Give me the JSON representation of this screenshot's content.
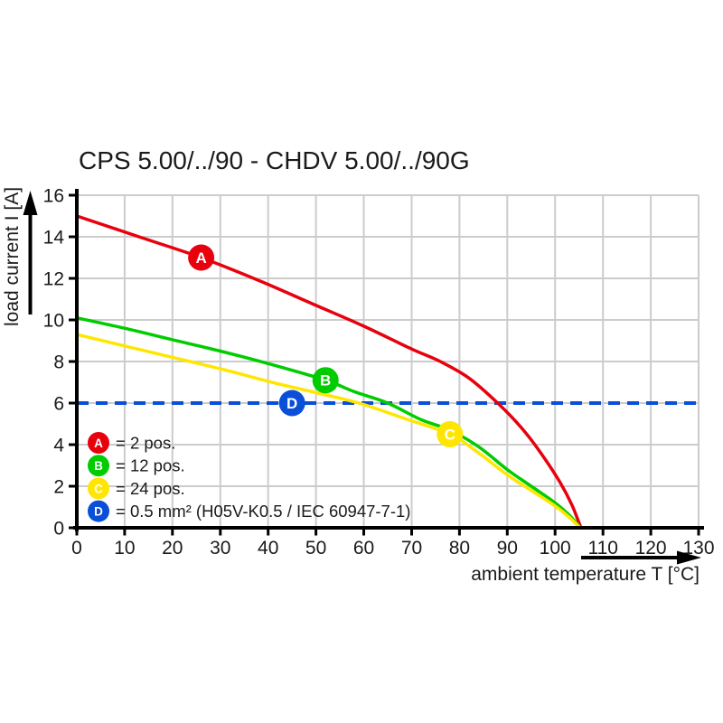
{
  "chart_data": {
    "type": "line",
    "title": "CPS 5.00/../90 - CHDV 5.00/../90G",
    "xlabel": "ambient temperature T [°C]",
    "ylabel": "load current I [A]",
    "xlim": [
      0,
      130
    ],
    "ylim": [
      0,
      16
    ],
    "x_ticks": [
      0,
      10,
      20,
      30,
      40,
      50,
      60,
      70,
      80,
      90,
      100,
      110,
      120,
      130
    ],
    "y_ticks": [
      0,
      2,
      4,
      6,
      8,
      10,
      12,
      14,
      16
    ],
    "grid": true,
    "series": [
      {
        "id": "A",
        "name": "2 pos.",
        "color": "#e8000d",
        "style": "solid",
        "marker": {
          "label": "A",
          "x": 26,
          "y": 13
        },
        "points": [
          [
            0,
            15
          ],
          [
            13,
            14
          ],
          [
            26,
            13
          ],
          [
            38,
            11.9
          ],
          [
            50,
            10.7
          ],
          [
            60,
            9.7
          ],
          [
            70,
            8.6
          ],
          [
            76,
            8.0
          ],
          [
            82,
            7.2
          ],
          [
            88,
            6.0
          ],
          [
            93,
            4.8
          ],
          [
            97,
            3.6
          ],
          [
            101,
            2.2
          ],
          [
            103.5,
            1.1
          ],
          [
            105.4,
            0
          ]
        ]
      },
      {
        "id": "B",
        "name": "12 pos.",
        "color": "#00cc00",
        "style": "solid",
        "marker": {
          "label": "B",
          "x": 52,
          "y": 7.1
        },
        "points": [
          [
            0,
            10.1
          ],
          [
            10,
            9.6
          ],
          [
            20,
            9.05
          ],
          [
            30,
            8.5
          ],
          [
            40,
            7.9
          ],
          [
            52,
            7.1
          ],
          [
            58,
            6.55
          ],
          [
            65,
            6.0
          ],
          [
            72,
            5.2
          ],
          [
            78,
            4.7
          ],
          [
            84,
            3.9
          ],
          [
            90,
            2.8
          ],
          [
            95,
            2.0
          ],
          [
            100,
            1.2
          ],
          [
            103,
            0.6
          ],
          [
            105.3,
            0
          ]
        ]
      },
      {
        "id": "C",
        "name": "24 pos.",
        "color": "#ffe600",
        "style": "solid",
        "marker": {
          "label": "C",
          "x": 78,
          "y": 4.5
        },
        "points": [
          [
            0,
            9.3
          ],
          [
            10,
            8.75
          ],
          [
            20,
            8.2
          ],
          [
            30,
            7.65
          ],
          [
            40,
            7.05
          ],
          [
            50,
            6.5
          ],
          [
            59,
            6.0
          ],
          [
            68,
            5.3
          ],
          [
            78,
            4.5
          ],
          [
            84,
            3.6
          ],
          [
            90,
            2.55
          ],
          [
            95,
            1.8
          ],
          [
            100,
            1.05
          ],
          [
            103,
            0.5
          ],
          [
            105.2,
            0
          ]
        ]
      },
      {
        "id": "D",
        "name": "0.5 mm² (H05V-K0.5 / IEC 60947-7-1)",
        "color": "#0a4fd8",
        "style": "dashed",
        "marker": {
          "label": "D",
          "x": 45,
          "y": 6
        },
        "points": [
          [
            0,
            6
          ],
          [
            130,
            6
          ]
        ]
      }
    ],
    "legend": {
      "position": "inside-bottom-left",
      "items": [
        {
          "label": "A",
          "color": "#e8000d",
          "text": "= 2 pos."
        },
        {
          "label": "B",
          "color": "#00cc00",
          "text": "= 12 pos."
        },
        {
          "label": "C",
          "color": "#ffe600",
          "text": "= 24 pos."
        },
        {
          "label": "D",
          "color": "#0a4fd8",
          "text": "= 0.5 mm² (H05V-K0.5 / IEC 60947-7-1)"
        }
      ]
    },
    "colors": {
      "grid": "#cccccc",
      "axis": "#000000",
      "background": "#ffffff"
    }
  }
}
